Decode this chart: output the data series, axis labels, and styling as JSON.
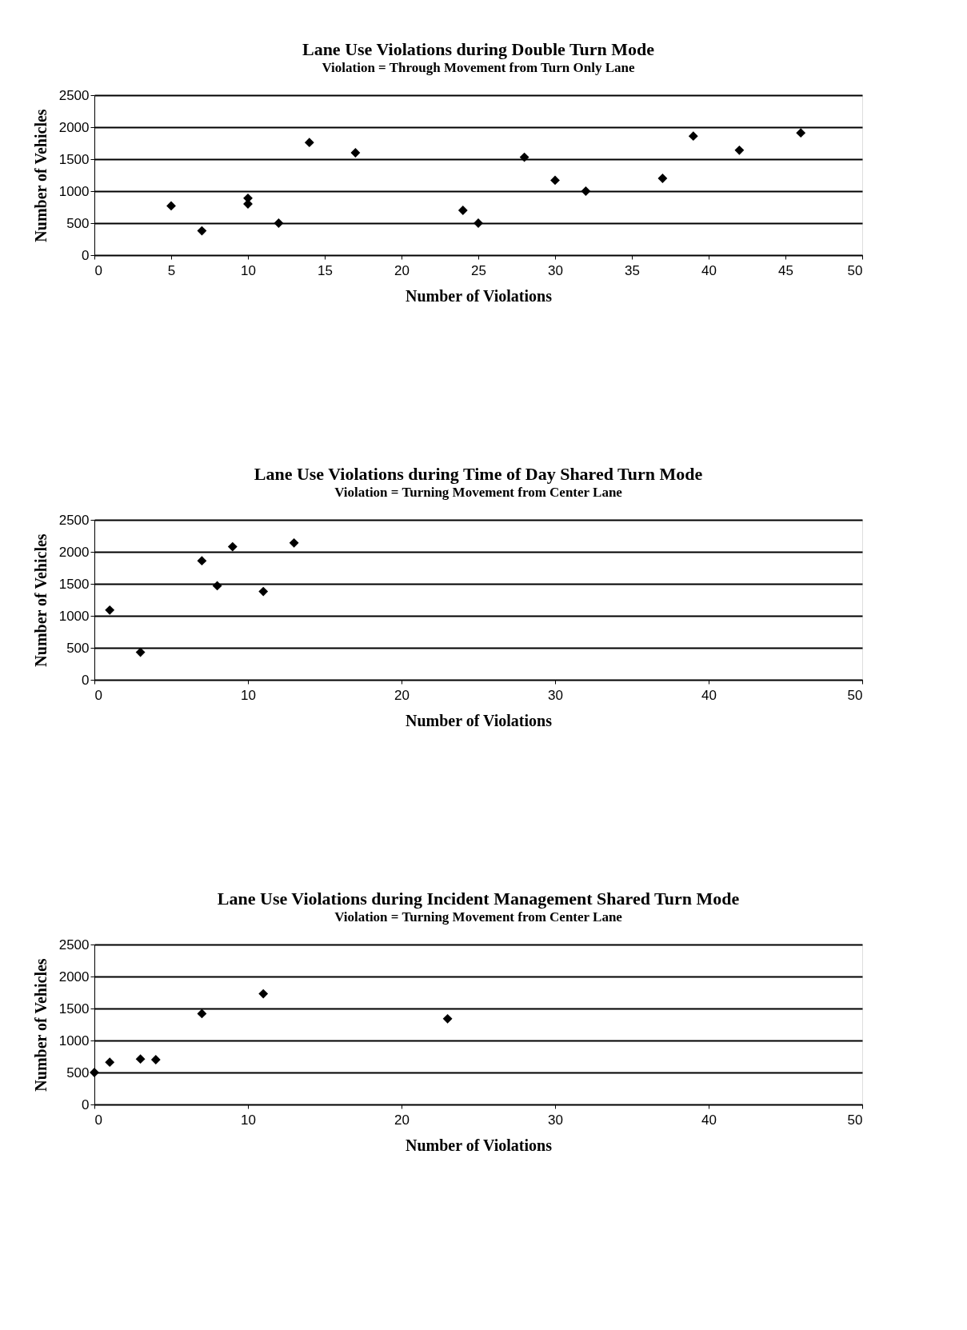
{
  "chart_data": [
    {
      "type": "scatter",
      "title": "Lane Use Violations during Double Turn Mode",
      "subtitle": "Violation = Through Movement from Turn Only Lane",
      "xlabel": "Number of Violations",
      "ylabel": "Number of Vehicles",
      "x": [
        5,
        7,
        10,
        10,
        12,
        14,
        17,
        24,
        25,
        28,
        30,
        32,
        37,
        39,
        42,
        46
      ],
      "series": [
        {
          "color": "#000000",
          "values": [
            770,
            380,
            890,
            800,
            500,
            1760,
            1600,
            700,
            500,
            1530,
            1170,
            1000,
            1200,
            1860,
            1640,
            1910
          ]
        }
      ],
      "xlim": [
        0,
        50
      ],
      "xticks": [
        0,
        5,
        10,
        15,
        20,
        25,
        30,
        35,
        40,
        45,
        50
      ],
      "ylim": [
        0,
        2500
      ],
      "yticks": [
        0,
        500,
        1000,
        1500,
        2000,
        2500
      ],
      "grid": "y",
      "marker": "diamond"
    },
    {
      "type": "scatter",
      "title": "Lane Use Violations during Time of Day Shared Turn Mode",
      "subtitle": "Violation = Turning Movement from Center Lane",
      "xlabel": "Number of Violations",
      "ylabel": "Number of Vehicles",
      "x": [
        1,
        3,
        7,
        8,
        9,
        11,
        13
      ],
      "series": [
        {
          "color": "#000000",
          "values": [
            1090,
            430,
            1860,
            1470,
            2080,
            1380,
            2140
          ]
        }
      ],
      "xlim": [
        0,
        50
      ],
      "xticks": [
        0,
        10,
        20,
        30,
        40,
        50
      ],
      "ylim": [
        0,
        2500
      ],
      "yticks": [
        0,
        500,
        1000,
        1500,
        2000,
        2500
      ],
      "grid": "y",
      "marker": "diamond"
    },
    {
      "type": "scatter",
      "title": "Lane Use Violations during Incident Management Shared Turn Mode",
      "subtitle": "Violation = Turning Movement from Center Lane",
      "xlabel": "Number of Violations",
      "ylabel": "Number of Vehicles",
      "x": [
        0,
        1,
        3,
        4,
        7,
        11,
        23
      ],
      "series": [
        {
          "color": "#000000",
          "values": [
            500,
            660,
            710,
            700,
            1420,
            1730,
            1340
          ]
        }
      ],
      "xlim": [
        0,
        50
      ],
      "xticks": [
        0,
        10,
        20,
        30,
        40,
        50
      ],
      "ylim": [
        0,
        2500
      ],
      "yticks": [
        0,
        500,
        1000,
        1500,
        2000,
        2500
      ],
      "grid": "y",
      "marker": "diamond"
    }
  ]
}
